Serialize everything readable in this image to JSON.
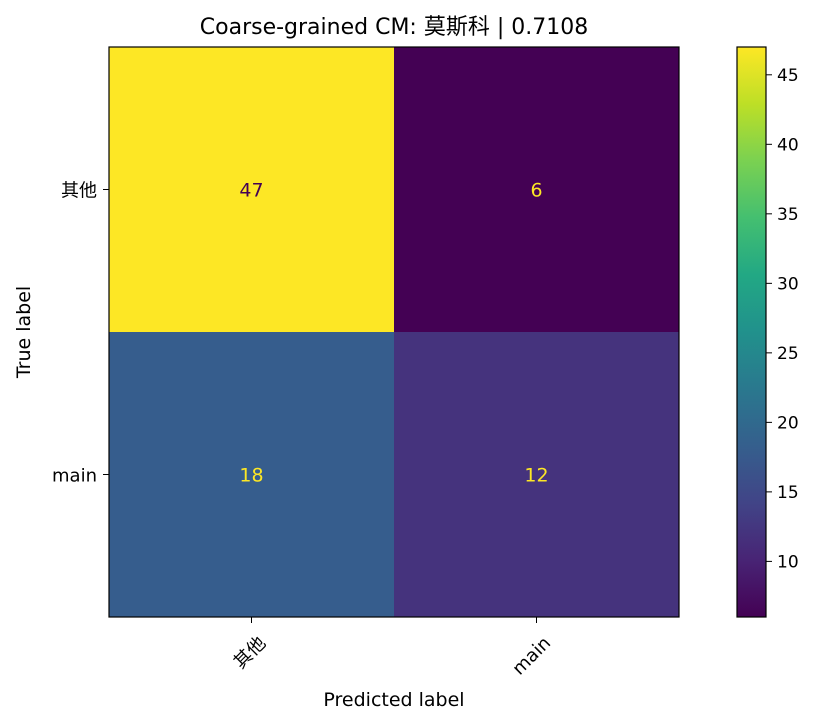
{
  "chart_data": {
    "type": "heatmap",
    "title": "Coarse-grained CM: 莫斯科 | 0.7108",
    "xlabel": "Predicted label",
    "ylabel": "True label",
    "x_categories": [
      "其他",
      "main"
    ],
    "y_categories": [
      "其他",
      "main"
    ],
    "values": [
      [
        47,
        6
      ],
      [
        18,
        12
      ]
    ],
    "cell_labels": [
      [
        "47",
        "6"
      ],
      [
        "18",
        "12"
      ]
    ],
    "colormap": "viridis",
    "color_range": [
      6,
      47
    ],
    "colorbar_ticks": [
      10,
      15,
      20,
      25,
      30,
      35,
      40,
      45
    ],
    "colorbar_tick_labels": [
      "10",
      "15",
      "20",
      "25",
      "30",
      "35",
      "40",
      "45"
    ],
    "low_value_text_color": "#fde725",
    "high_value_text_color": "#440154",
    "x_tick_rotation_deg": 45,
    "grid": false
  }
}
